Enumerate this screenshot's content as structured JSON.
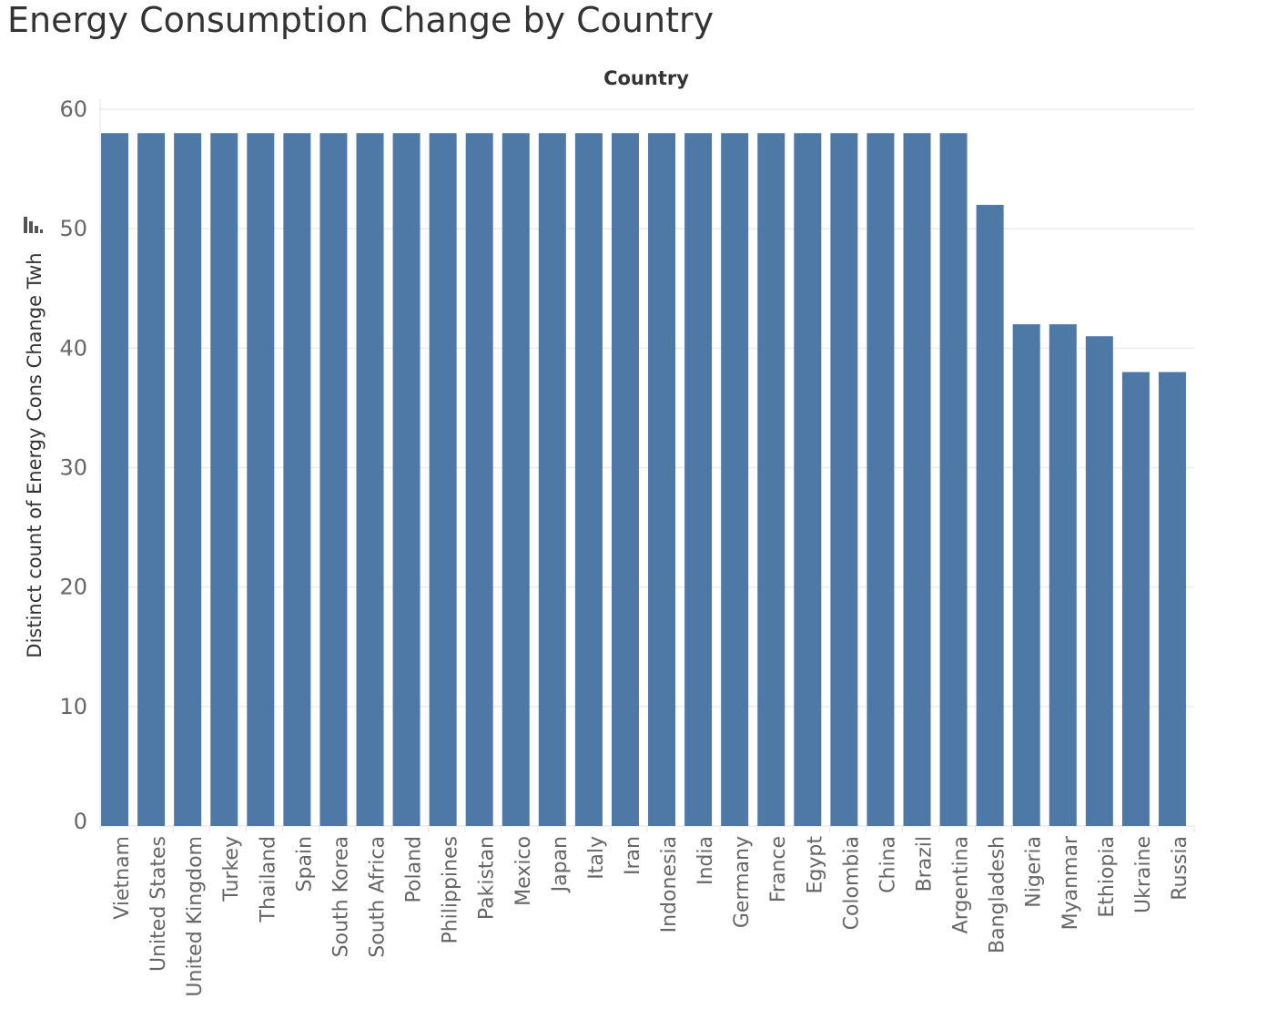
{
  "title": "Energy Consumption Change by Country",
  "chart_data": {
    "type": "bar",
    "title": "Energy Consumption Change by Country",
    "column_header": "Country",
    "xlabel": "",
    "ylabel": "Distinct count of Energy Cons Change Twh",
    "ylim": [
      0,
      60
    ],
    "yticks": [
      0,
      10,
      20,
      30,
      40,
      50,
      60
    ],
    "grid": true,
    "bar_color": "#4e79a7",
    "categories": [
      "Vietnam",
      "United States",
      "United Kingdom",
      "Turkey",
      "Thailand",
      "Spain",
      "South Korea",
      "South Africa",
      "Poland",
      "Philippines",
      "Pakistan",
      "Mexico",
      "Japan",
      "Italy",
      "Iran",
      "Indonesia",
      "India",
      "Germany",
      "France",
      "Egypt",
      "Colombia",
      "China",
      "Brazil",
      "Argentina",
      "Bangladesh",
      "Nigeria",
      "Myanmar",
      "Ethiopia",
      "Ukraine",
      "Russia"
    ],
    "values": [
      58,
      58,
      58,
      58,
      58,
      58,
      58,
      58,
      58,
      58,
      58,
      58,
      58,
      58,
      58,
      58,
      58,
      58,
      58,
      58,
      58,
      58,
      58,
      58,
      52,
      42,
      42,
      41,
      38,
      38
    ]
  },
  "icons": {
    "sort": "sort-descending-icon"
  }
}
